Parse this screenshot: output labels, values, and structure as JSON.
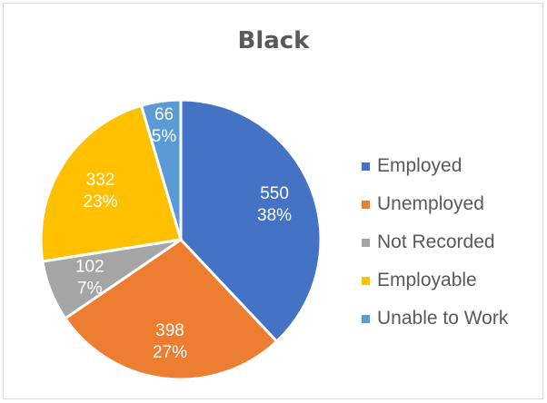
{
  "chart_data": {
    "type": "pie",
    "title": "Black",
    "legend_position": "right",
    "slices": [
      {
        "name": "Employed",
        "value": 550,
        "percent_label": "38%",
        "color": "#4472c4"
      },
      {
        "name": "Unemployed",
        "value": 398,
        "percent_label": "27%",
        "color": "#ed7d31"
      },
      {
        "name": "Not Recorded",
        "value": 102,
        "percent_label": "7%",
        "color": "#a5a5a5"
      },
      {
        "name": "Employable",
        "value": 332,
        "percent_label": "23%",
        "color": "#ffc000"
      },
      {
        "name": "Unable to Work",
        "value": 66,
        "percent_label": "5%",
        "color": "#5b9bd5"
      }
    ]
  }
}
